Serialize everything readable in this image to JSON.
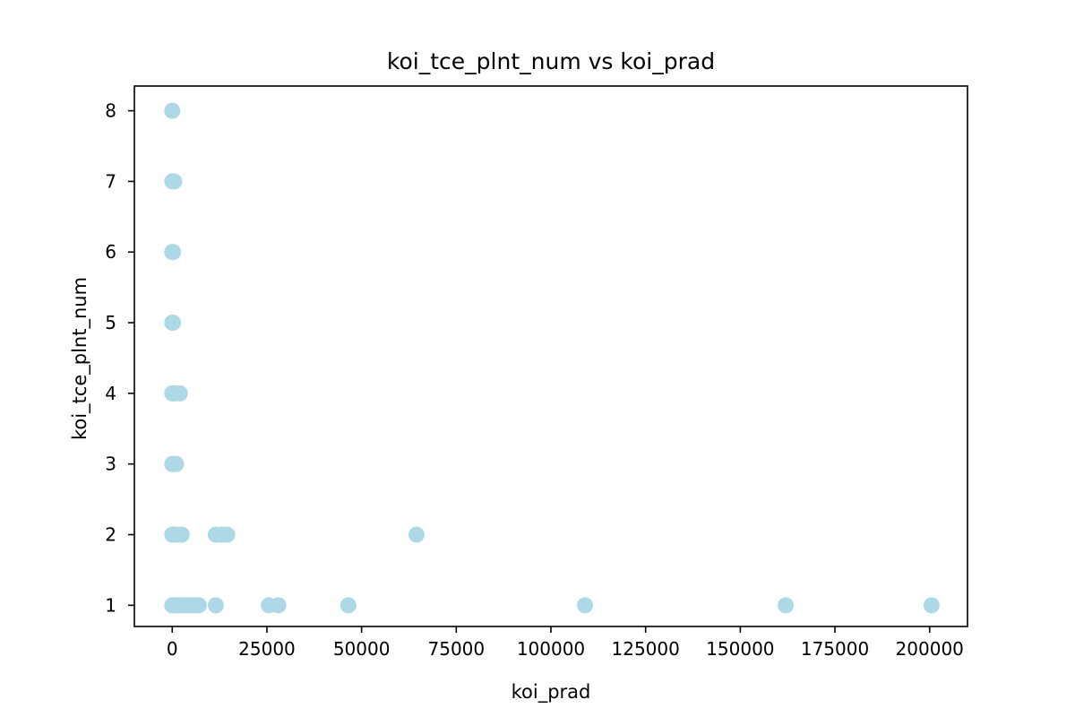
{
  "chart_data": {
    "type": "scatter",
    "title": "koi_tce_plnt_num vs koi_prad",
    "xlabel": "koi_prad",
    "ylabel": "koi_tce_plnt_num",
    "xlim": [
      -10000,
      210000
    ],
    "ylim": [
      0.7,
      8.35
    ],
    "xticks": [
      0,
      25000,
      50000,
      75000,
      100000,
      125000,
      150000,
      175000,
      200000
    ],
    "yticks": [
      1,
      2,
      3,
      4,
      5,
      6,
      7,
      8
    ],
    "grid": false,
    "legend": "none",
    "marker_color": "#add8e6",
    "series": [
      {
        "x": [
          0,
          200,
          500,
          1000,
          1500,
          2000,
          3000,
          4000,
          5000,
          6000,
          7000,
          11500,
          25500,
          28000,
          46500,
          109000,
          162000,
          200500,
          0,
          200,
          500,
          1000,
          2500,
          11500,
          13000,
          14500,
          64500,
          0,
          200,
          500,
          1000,
          0,
          200,
          500,
          2000,
          0,
          200,
          0,
          200,
          0,
          500,
          0
        ],
        "y": [
          1,
          1,
          1,
          1,
          1,
          1,
          1,
          1,
          1,
          1,
          1,
          1,
          1,
          1,
          1,
          1,
          1,
          1,
          2,
          2,
          2,
          2,
          2,
          2,
          2,
          2,
          2,
          3,
          3,
          3,
          3,
          4,
          4,
          4,
          4,
          5,
          5,
          6,
          6,
          7,
          7,
          8
        ]
      }
    ]
  }
}
